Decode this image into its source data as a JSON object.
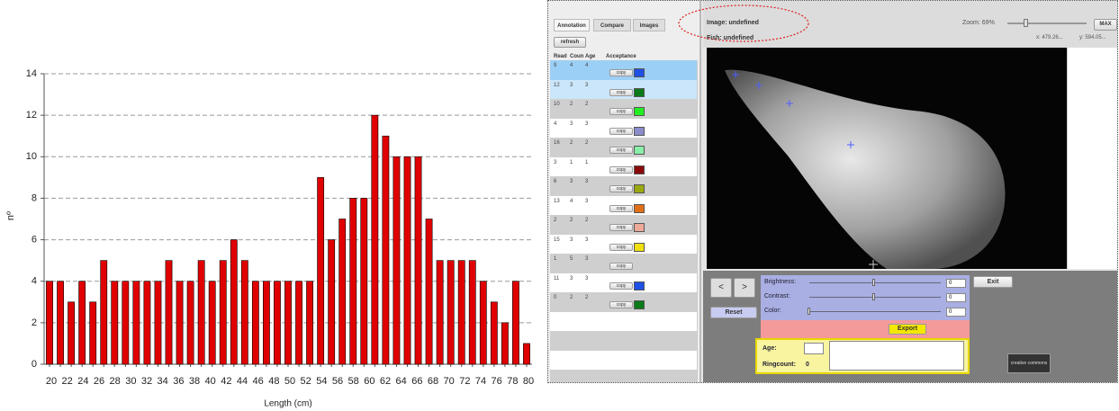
{
  "chart_data": {
    "type": "bar",
    "y_label": "nº",
    "x_label": "Length (cm)",
    "categories": [
      null,
      null,
      null,
      null,
      null,
      null,
      null,
      null,
      null,
      null,
      null,
      null,
      null,
      null,
      null,
      null,
      null,
      null,
      null,
      null,
      null,
      null,
      null,
      null,
      null,
      null,
      null,
      null,
      null,
      null,
      null,
      null,
      null,
      null,
      null,
      null,
      null,
      null,
      null,
      null,
      null,
      null,
      null,
      null,
      null
    ],
    "values": [
      4,
      4,
      3,
      4,
      3,
      5,
      4,
      4,
      4,
      4,
      4,
      5,
      4,
      4,
      5,
      4,
      5,
      6,
      5,
      4,
      4,
      4,
      4,
      4,
      4,
      9,
      6,
      7,
      8,
      8,
      12,
      11,
      10,
      10,
      10,
      7,
      5,
      5,
      5,
      5,
      4,
      3,
      2,
      4,
      1
    ],
    "x_axis_labels": [
      20,
      22,
      24,
      26,
      28,
      30,
      32,
      34,
      36,
      38,
      40,
      42,
      44,
      46,
      48,
      50,
      52,
      54,
      56,
      58,
      60,
      62,
      64,
      66,
      68,
      70,
      72,
      74,
      76,
      78,
      80
    ],
    "color": "#e00000",
    "ylim": [
      0,
      14
    ],
    "yticks": [
      0,
      2,
      4,
      6,
      8,
      10,
      12,
      14
    ],
    "grid": true
  },
  "app": {
    "tabs": [
      "Annotation",
      "Compare",
      "Images"
    ],
    "refresh": "refresh",
    "columns": [
      "Read",
      "Coun",
      "Age",
      "Acceptance"
    ],
    "rows": [
      {
        "reader": 9,
        "count": 4,
        "age": 4,
        "button": "copy",
        "swatch": "#1e50e6"
      },
      {
        "reader": 12,
        "count": 3,
        "age": 3,
        "button": "copy",
        "swatch": "#0a7a1a"
      },
      {
        "reader": 10,
        "count": 2,
        "age": 2,
        "button": "copy",
        "swatch": "#22ee22"
      },
      {
        "reader": 4,
        "count": 3,
        "age": 3,
        "button": "copy",
        "swatch": "#8c8ccc"
      },
      {
        "reader": 16,
        "count": 2,
        "age": 2,
        "button": "copy",
        "swatch": "#88eea8"
      },
      {
        "reader": 3,
        "count": 1,
        "age": 1,
        "button": "copy",
        "swatch": "#8a0a0a"
      },
      {
        "reader": 6,
        "count": 3,
        "age": 3,
        "button": "copy",
        "swatch": "#9aa810"
      },
      {
        "reader": 13,
        "count": 4,
        "age": 3,
        "button": "copy",
        "swatch": "#e07018"
      },
      {
        "reader": 2,
        "count": 2,
        "age": 2,
        "button": "copy",
        "swatch": "#eeaa98"
      },
      {
        "reader": 15,
        "count": 3,
        "age": 3,
        "button": "copy",
        "swatch": "#f0e010"
      },
      {
        "reader": 1,
        "count": 5,
        "age": 3,
        "button": "copy",
        "swatch": null
      },
      {
        "reader": 11,
        "count": 3,
        "age": 3,
        "button": "copy",
        "swatch": "#1e50e6"
      },
      {
        "reader": 0,
        "count": 2,
        "age": 2,
        "button": "copy",
        "swatch": "#0a7a1a"
      }
    ],
    "image_label": "Image: undefined",
    "fish_label": "Fish: undefined",
    "zoom": "Zoom: 69%",
    "max": "MAX",
    "coord_x": "x: 479.26...",
    "coord_y": "y: 594.05...",
    "prev": "<",
    "next": ">",
    "reset": "Reset",
    "sliders": [
      {
        "label": "Brightness:",
        "value": 0
      },
      {
        "label": "Contrast:",
        "value": 0
      },
      {
        "label": "Color:",
        "value": 0
      }
    ],
    "exit": "Exit",
    "export": "Export",
    "age": "Age:",
    "ringcount": "Ringcount:",
    "ringcount_value": 0,
    "license": "creative commons"
  }
}
